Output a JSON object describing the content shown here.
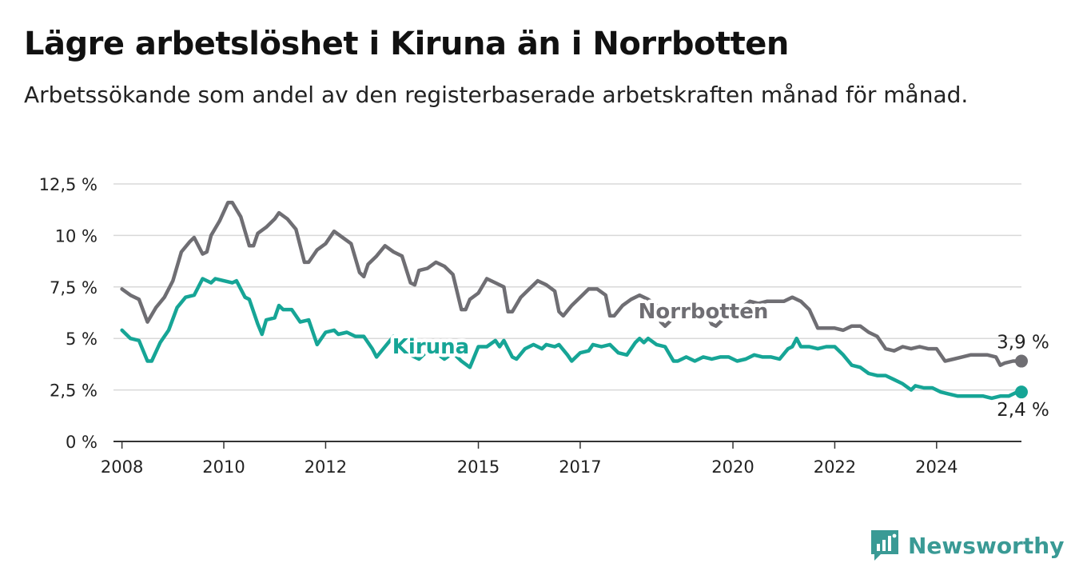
{
  "header": {
    "title": "Lägre arbetslöshet i Kiruna än i Norrbotten",
    "subtitle": "Arbetssökande som andel av den registerbaserade arbetskraften månad för månad."
  },
  "brand": {
    "name": "Newsworthy",
    "icon": "newsworthy-logo-icon",
    "color": "#3a9a95"
  },
  "colors": {
    "Kiruna": "#16a596",
    "Norrbotten": "#6f6e73",
    "grid": "#d9d9d9",
    "axis": "#333333"
  },
  "chart_data": {
    "type": "line",
    "title": "Lägre arbetslöshet i Kiruna än i Norrbotten",
    "subtitle": "Arbetssökande som andel av den registerbaserade arbetskraften månad för månad.",
    "xlabel": "",
    "ylabel": "",
    "ylim": [
      0,
      12.5
    ],
    "xlim": [
      "2007-11",
      "2025-09"
    ],
    "y_ticks": [
      0,
      2.5,
      5,
      7.5,
      10,
      12.5
    ],
    "y_tick_labels": [
      "0 %",
      "2,5 %",
      "5 %",
      "7,5 %",
      "10 %",
      "12,5 %"
    ],
    "x_ticks": [
      "2008-01",
      "2010-01",
      "2012-01",
      "2015-01",
      "2017-01",
      "2020-01",
      "2022-01",
      "2024-01"
    ],
    "x_tick_labels": [
      "2008",
      "2010",
      "2012",
      "2015",
      "2017",
      "2020",
      "2022",
      "2024"
    ],
    "grid": true,
    "legend": "inline labels",
    "series": [
      {
        "name": "Norrbotten",
        "end_label": "3,9 %",
        "points": [
          [
            "2008-01",
            7.4
          ],
          [
            "2008-03",
            7.1
          ],
          [
            "2008-05",
            6.9
          ],
          [
            "2008-07",
            5.8
          ],
          [
            "2008-09",
            6.5
          ],
          [
            "2008-11",
            7.0
          ],
          [
            "2009-01",
            7.8
          ],
          [
            "2009-03",
            9.2
          ],
          [
            "2009-05",
            9.7
          ],
          [
            "2009-06",
            9.9
          ],
          [
            "2009-08",
            9.1
          ],
          [
            "2009-09",
            9.2
          ],
          [
            "2009-10",
            10.0
          ],
          [
            "2009-12",
            10.7
          ],
          [
            "2010-02",
            11.6
          ],
          [
            "2010-03",
            11.6
          ],
          [
            "2010-05",
            10.9
          ],
          [
            "2010-07",
            9.5
          ],
          [
            "2010-08",
            9.5
          ],
          [
            "2010-09",
            10.1
          ],
          [
            "2010-11",
            10.4
          ],
          [
            "2011-01",
            10.8
          ],
          [
            "2011-02",
            11.1
          ],
          [
            "2011-04",
            10.8
          ],
          [
            "2011-06",
            10.3
          ],
          [
            "2011-08",
            8.7
          ],
          [
            "2011-09",
            8.7
          ],
          [
            "2011-11",
            9.3
          ],
          [
            "2012-01",
            9.6
          ],
          [
            "2012-03",
            10.2
          ],
          [
            "2012-05",
            9.9
          ],
          [
            "2012-07",
            9.6
          ],
          [
            "2012-09",
            8.2
          ],
          [
            "2012-10",
            8.0
          ],
          [
            "2012-11",
            8.6
          ],
          [
            "2013-01",
            9.0
          ],
          [
            "2013-03",
            9.5
          ],
          [
            "2013-05",
            9.2
          ],
          [
            "2013-07",
            9.0
          ],
          [
            "2013-09",
            7.7
          ],
          [
            "2013-10",
            7.6
          ],
          [
            "2013-11",
            8.3
          ],
          [
            "2014-01",
            8.4
          ],
          [
            "2014-03",
            8.7
          ],
          [
            "2014-05",
            8.5
          ],
          [
            "2014-07",
            8.1
          ],
          [
            "2014-09",
            6.4
          ],
          [
            "2014-10",
            6.4
          ],
          [
            "2014-11",
            6.9
          ],
          [
            "2015-01",
            7.2
          ],
          [
            "2015-03",
            7.9
          ],
          [
            "2015-05",
            7.7
          ],
          [
            "2015-07",
            7.5
          ],
          [
            "2015-08",
            6.3
          ],
          [
            "2015-09",
            6.3
          ],
          [
            "2015-11",
            7.0
          ],
          [
            "2016-01",
            7.4
          ],
          [
            "2016-03",
            7.8
          ],
          [
            "2016-05",
            7.6
          ],
          [
            "2016-07",
            7.3
          ],
          [
            "2016-08",
            6.3
          ],
          [
            "2016-09",
            6.1
          ],
          [
            "2016-11",
            6.6
          ],
          [
            "2017-01",
            7.0
          ],
          [
            "2017-03",
            7.4
          ],
          [
            "2017-05",
            7.4
          ],
          [
            "2017-07",
            7.1
          ],
          [
            "2017-08",
            6.1
          ],
          [
            "2017-09",
            6.1
          ],
          [
            "2017-11",
            6.6
          ],
          [
            "2018-01",
            6.9
          ],
          [
            "2018-03",
            7.1
          ],
          [
            "2018-05",
            6.9
          ],
          [
            "2018-07",
            6.6
          ],
          [
            "2018-08",
            5.8
          ],
          [
            "2018-09",
            5.6
          ],
          [
            "2018-11",
            6.0
          ],
          [
            "2019-01",
            6.3
          ],
          [
            "2019-03",
            6.5
          ],
          [
            "2019-05",
            6.4
          ],
          [
            "2019-07",
            6.1
          ],
          [
            "2019-08",
            5.7
          ],
          [
            "2019-09",
            5.6
          ],
          [
            "2019-11",
            6.0
          ],
          [
            "2020-01",
            6.2
          ],
          [
            "2020-03",
            6.5
          ],
          [
            "2020-05",
            6.8
          ],
          [
            "2020-07",
            6.7
          ],
          [
            "2020-09",
            6.8
          ],
          [
            "2020-11",
            6.8
          ],
          [
            "2021-01",
            6.8
          ],
          [
            "2021-03",
            7.0
          ],
          [
            "2021-05",
            6.8
          ],
          [
            "2021-07",
            6.4
          ],
          [
            "2021-09",
            5.5
          ],
          [
            "2021-11",
            5.5
          ],
          [
            "2022-01",
            5.5
          ],
          [
            "2022-03",
            5.4
          ],
          [
            "2022-05",
            5.6
          ],
          [
            "2022-07",
            5.6
          ],
          [
            "2022-09",
            5.3
          ],
          [
            "2022-11",
            5.1
          ],
          [
            "2023-01",
            4.5
          ],
          [
            "2023-03",
            4.4
          ],
          [
            "2023-05",
            4.6
          ],
          [
            "2023-07",
            4.5
          ],
          [
            "2023-09",
            4.6
          ],
          [
            "2023-11",
            4.5
          ],
          [
            "2024-01",
            4.5
          ],
          [
            "2024-03",
            3.9
          ],
          [
            "2024-05",
            4.0
          ],
          [
            "2024-07",
            4.1
          ],
          [
            "2024-09",
            4.2
          ],
          [
            "2024-11",
            4.2
          ],
          [
            "2025-01",
            4.2
          ],
          [
            "2025-03",
            4.1
          ],
          [
            "2025-04",
            3.7
          ],
          [
            "2025-05",
            3.8
          ],
          [
            "2025-07",
            3.9
          ],
          [
            "2025-09",
            3.9
          ]
        ]
      },
      {
        "name": "Kiruna",
        "end_label": "2,4 %",
        "points": [
          [
            "2008-01",
            5.4
          ],
          [
            "2008-03",
            5.0
          ],
          [
            "2008-05",
            4.9
          ],
          [
            "2008-07",
            3.9
          ],
          [
            "2008-08",
            3.9
          ],
          [
            "2008-10",
            4.8
          ],
          [
            "2008-12",
            5.4
          ],
          [
            "2009-02",
            6.5
          ],
          [
            "2009-04",
            7.0
          ],
          [
            "2009-06",
            7.1
          ],
          [
            "2009-08",
            7.9
          ],
          [
            "2009-10",
            7.7
          ],
          [
            "2009-11",
            7.9
          ],
          [
            "2010-01",
            7.8
          ],
          [
            "2010-03",
            7.7
          ],
          [
            "2010-04",
            7.8
          ],
          [
            "2010-06",
            7.0
          ],
          [
            "2010-07",
            6.9
          ],
          [
            "2010-09",
            5.7
          ],
          [
            "2010-10",
            5.2
          ],
          [
            "2010-11",
            5.9
          ],
          [
            "2011-01",
            6.0
          ],
          [
            "2011-02",
            6.6
          ],
          [
            "2011-03",
            6.4
          ],
          [
            "2011-05",
            6.4
          ],
          [
            "2011-07",
            5.8
          ],
          [
            "2011-09",
            5.9
          ],
          [
            "2011-11",
            4.7
          ],
          [
            "2012-01",
            5.3
          ],
          [
            "2012-03",
            5.4
          ],
          [
            "2012-04",
            5.2
          ],
          [
            "2012-06",
            5.3
          ],
          [
            "2012-08",
            5.1
          ],
          [
            "2012-10",
            5.1
          ],
          [
            "2012-12",
            4.5
          ],
          [
            "2013-01",
            4.1
          ],
          [
            "2013-03",
            4.6
          ],
          [
            "2013-05",
            5.1
          ],
          [
            "2013-07",
            4.8
          ],
          [
            "2013-09",
            4.2
          ],
          [
            "2013-11",
            4.0
          ],
          [
            "2014-01",
            4.4
          ],
          [
            "2014-03",
            4.3
          ],
          [
            "2014-05",
            4.0
          ],
          [
            "2014-07",
            4.3
          ],
          [
            "2014-09",
            3.9
          ],
          [
            "2014-11",
            3.6
          ],
          [
            "2015-01",
            4.6
          ],
          [
            "2015-03",
            4.6
          ],
          [
            "2015-05",
            4.9
          ],
          [
            "2015-06",
            4.6
          ],
          [
            "2015-07",
            4.9
          ],
          [
            "2015-09",
            4.1
          ],
          [
            "2015-10",
            4.0
          ],
          [
            "2015-12",
            4.5
          ],
          [
            "2016-02",
            4.7
          ],
          [
            "2016-04",
            4.5
          ],
          [
            "2016-05",
            4.7
          ],
          [
            "2016-07",
            4.6
          ],
          [
            "2016-08",
            4.7
          ],
          [
            "2016-10",
            4.2
          ],
          [
            "2016-11",
            3.9
          ],
          [
            "2017-01",
            4.3
          ],
          [
            "2017-03",
            4.4
          ],
          [
            "2017-04",
            4.7
          ],
          [
            "2017-06",
            4.6
          ],
          [
            "2017-08",
            4.7
          ],
          [
            "2017-10",
            4.3
          ],
          [
            "2017-12",
            4.2
          ],
          [
            "2018-02",
            4.8
          ],
          [
            "2018-03",
            5.0
          ],
          [
            "2018-04",
            4.8
          ],
          [
            "2018-05",
            5.0
          ],
          [
            "2018-07",
            4.7
          ],
          [
            "2018-09",
            4.6
          ],
          [
            "2018-11",
            3.9
          ],
          [
            "2018-12",
            3.9
          ],
          [
            "2019-02",
            4.1
          ],
          [
            "2019-04",
            3.9
          ],
          [
            "2019-06",
            4.1
          ],
          [
            "2019-08",
            4.0
          ],
          [
            "2019-10",
            4.1
          ],
          [
            "2019-12",
            4.1
          ],
          [
            "2020-02",
            3.9
          ],
          [
            "2020-04",
            4.0
          ],
          [
            "2020-06",
            4.2
          ],
          [
            "2020-08",
            4.1
          ],
          [
            "2020-10",
            4.1
          ],
          [
            "2020-12",
            4.0
          ],
          [
            "2021-02",
            4.5
          ],
          [
            "2021-03",
            4.6
          ],
          [
            "2021-04",
            5.0
          ],
          [
            "2021-05",
            4.6
          ],
          [
            "2021-07",
            4.6
          ],
          [
            "2021-09",
            4.5
          ],
          [
            "2021-11",
            4.6
          ],
          [
            "2022-01",
            4.6
          ],
          [
            "2022-03",
            4.2
          ],
          [
            "2022-05",
            3.7
          ],
          [
            "2022-07",
            3.6
          ],
          [
            "2022-09",
            3.3
          ],
          [
            "2022-11",
            3.2
          ],
          [
            "2023-01",
            3.2
          ],
          [
            "2023-03",
            3.0
          ],
          [
            "2023-05",
            2.8
          ],
          [
            "2023-07",
            2.5
          ],
          [
            "2023-08",
            2.7
          ],
          [
            "2023-10",
            2.6
          ],
          [
            "2023-12",
            2.6
          ],
          [
            "2024-02",
            2.4
          ],
          [
            "2024-04",
            2.3
          ],
          [
            "2024-06",
            2.2
          ],
          [
            "2024-08",
            2.2
          ],
          [
            "2024-10",
            2.2
          ],
          [
            "2024-12",
            2.2
          ],
          [
            "2025-02",
            2.1
          ],
          [
            "2025-04",
            2.2
          ],
          [
            "2025-06",
            2.2
          ],
          [
            "2025-08",
            2.4
          ],
          [
            "2025-09",
            2.4
          ]
        ]
      }
    ]
  }
}
